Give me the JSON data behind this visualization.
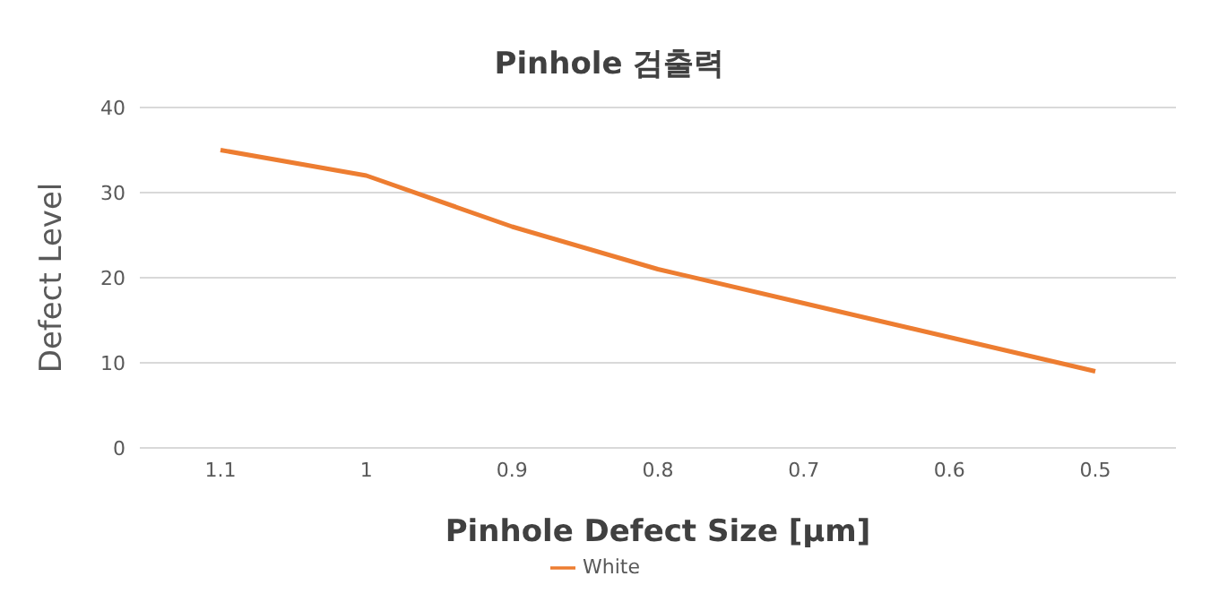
{
  "chart_data": {
    "type": "line",
    "title": "Pinhole 검출력",
    "xlabel": "Pinhole Defect Size [μm]",
    "ylabel": "Defect Level",
    "categories": [
      "1.1",
      "1",
      "0.9",
      "0.8",
      "0.7",
      "0.6",
      "0.5"
    ],
    "series": [
      {
        "name": "White",
        "color": "#ed7d31",
        "values": [
          35,
          32,
          26,
          21,
          17,
          13,
          9
        ]
      }
    ],
    "ylim": [
      0,
      40
    ],
    "yticks": [
      0,
      10,
      20,
      30,
      40
    ],
    "grid": "y",
    "legend": "bottom",
    "marker": "none",
    "line_style": "solid"
  }
}
